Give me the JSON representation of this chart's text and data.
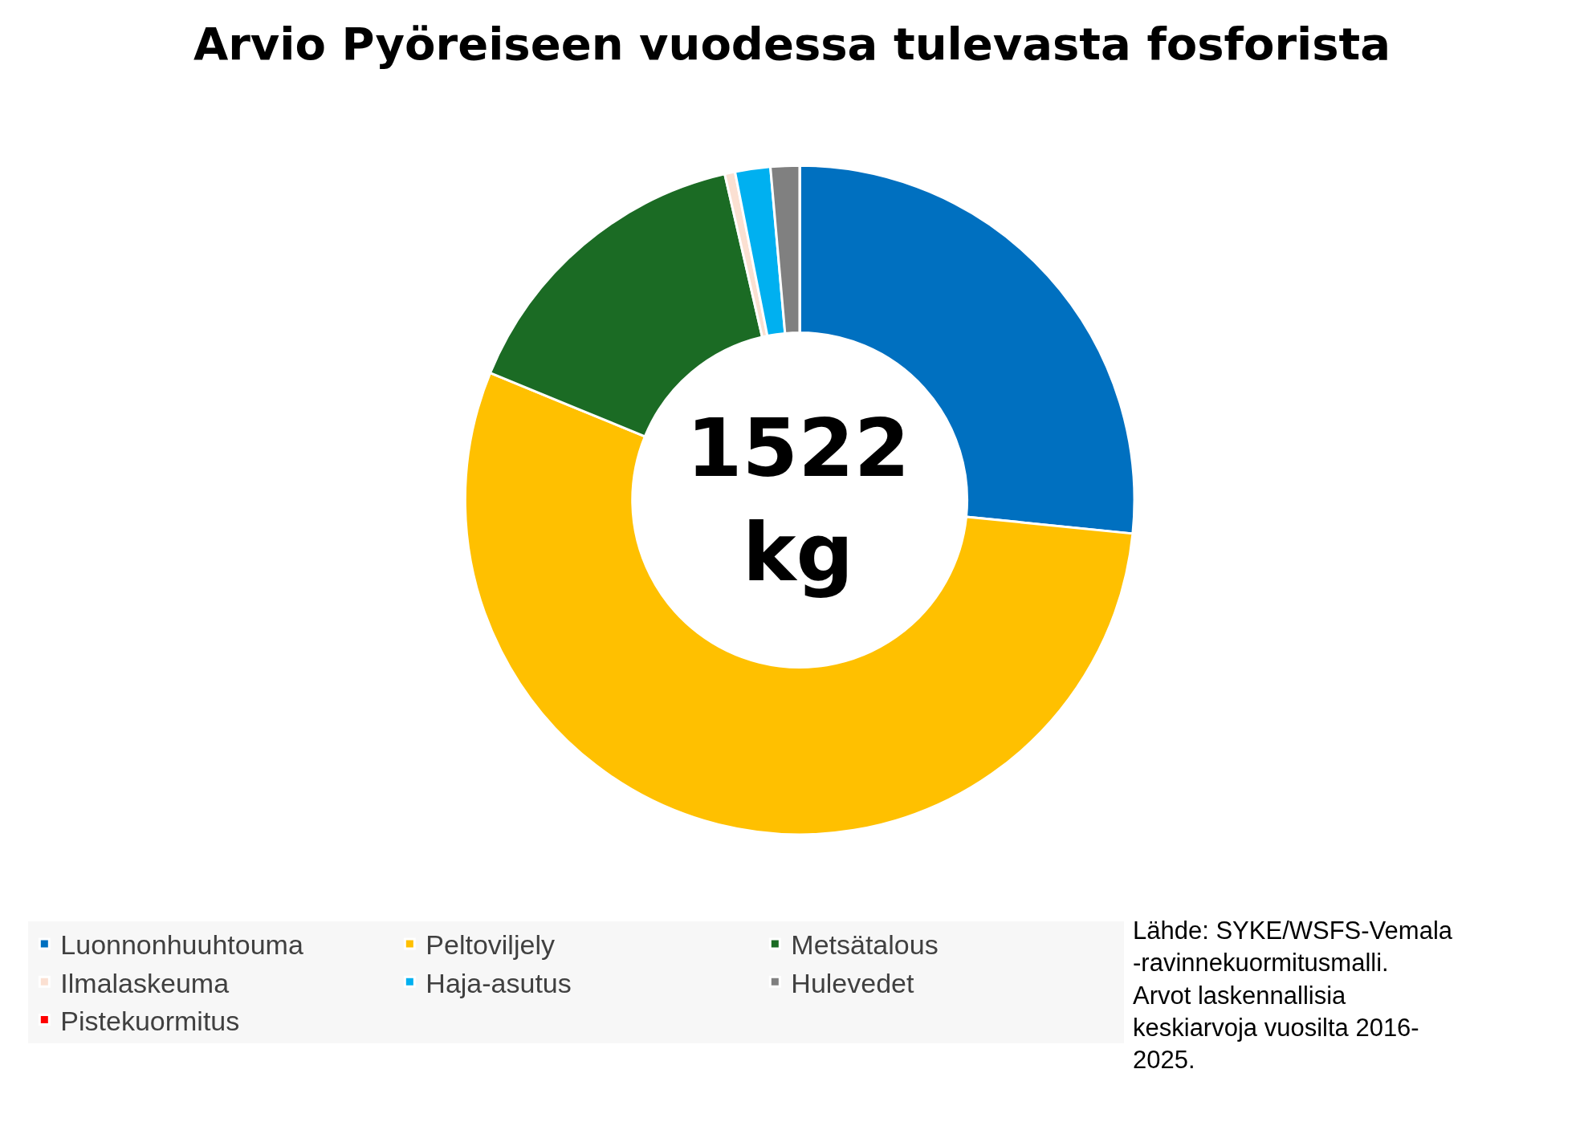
{
  "chart_data": {
    "type": "donut",
    "title": "Arvio Pyöreiseen vuodessa tulevasta fosforista",
    "categories": [
      "Luonnonhuuhtouma",
      "Peltoviljely",
      "Metsätalous",
      "Ilmalaskeuma",
      "Haja-asutus",
      "Hulevedet",
      "Pistekuormitus"
    ],
    "values": [
      26.6,
      54.6,
      15.2,
      0.5,
      1.7,
      1.4,
      0
    ],
    "colors": [
      "#0070c0",
      "#ffc000",
      "#1b6b24",
      "#fbe0d2",
      "#00b0f0",
      "#808080",
      "#ff0000"
    ],
    "legend": "bottom",
    "annotations": [
      "1522\nkg",
      "Lähde: SYKE/WSFS-Vemala\n-ravinnekuormitusmalli.\nArvot laskennallisia\nkeskiarvoja vuosilta 2016-\n2025."
    ]
  }
}
